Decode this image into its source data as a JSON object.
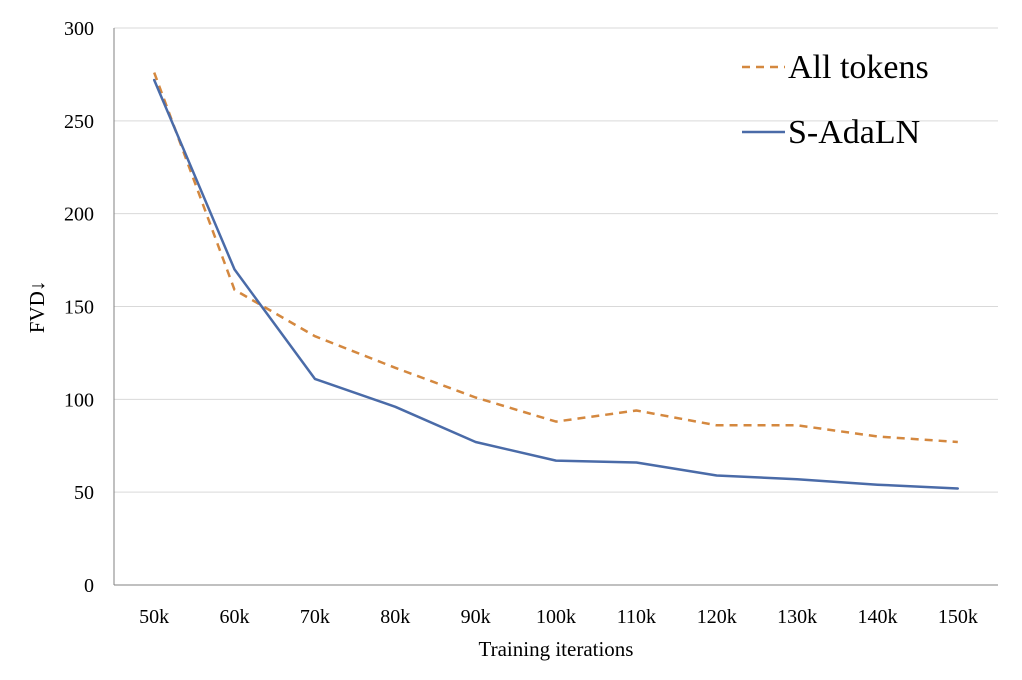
{
  "chart_data": {
    "type": "line",
    "categories": [
      "50k",
      "60k",
      "70k",
      "80k",
      "90k",
      "100k",
      "110k",
      "120k",
      "130k",
      "140k",
      "150k"
    ],
    "xlabel": "Training iterations",
    "ylabel": "FVD↓",
    "ylim": [
      0,
      300
    ],
    "yticks": [
      0,
      50,
      100,
      150,
      200,
      250,
      300
    ],
    "grid": true,
    "legend_position": "top-right",
    "series": [
      {
        "name": "All tokens",
        "style": "dashed",
        "color": "#D4883F",
        "values": [
          276,
          159,
          134,
          117,
          101,
          88,
          94,
          86,
          86,
          80,
          77
        ]
      },
      {
        "name": "S-AdaLN",
        "style": "solid",
        "color": "#4A6BA8",
        "values": [
          272,
          170,
          111,
          96,
          77,
          67,
          66,
          59,
          57,
          54,
          52
        ]
      }
    ]
  }
}
